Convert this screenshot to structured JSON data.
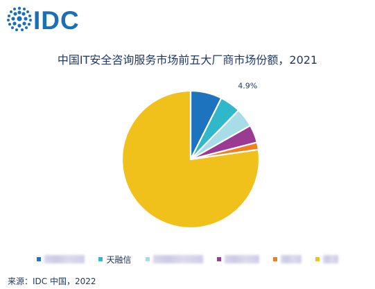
{
  "brand": {
    "logo_text": "IDC",
    "color": "#1a6fb5"
  },
  "chart_data": {
    "type": "pie",
    "title": "中国IT安全咨询服务市场前五大厂商市场份额，2021",
    "slices": [
      {
        "label": "",
        "value": 7.4,
        "color": "#1e73be",
        "label_hidden": true
      },
      {
        "label": "天融信",
        "value": 4.9,
        "color": "#2eb8c9",
        "data_label": "4.9%"
      },
      {
        "label": "",
        "value": 4.5,
        "color": "#a6dde6",
        "label_hidden": true
      },
      {
        "label": "",
        "value": 4.2,
        "color": "#9b3a92",
        "label_hidden": true
      },
      {
        "label": "",
        "value": 1.7,
        "color": "#f07f1e",
        "label_hidden": true
      },
      {
        "label": "",
        "value": 77.3,
        "color": "#f0c11b",
        "label_hidden": true
      }
    ],
    "start_angle_deg": 0,
    "direction": "clockwise",
    "legend_position": "bottom"
  },
  "source": "来源：IDC 中国，2022"
}
